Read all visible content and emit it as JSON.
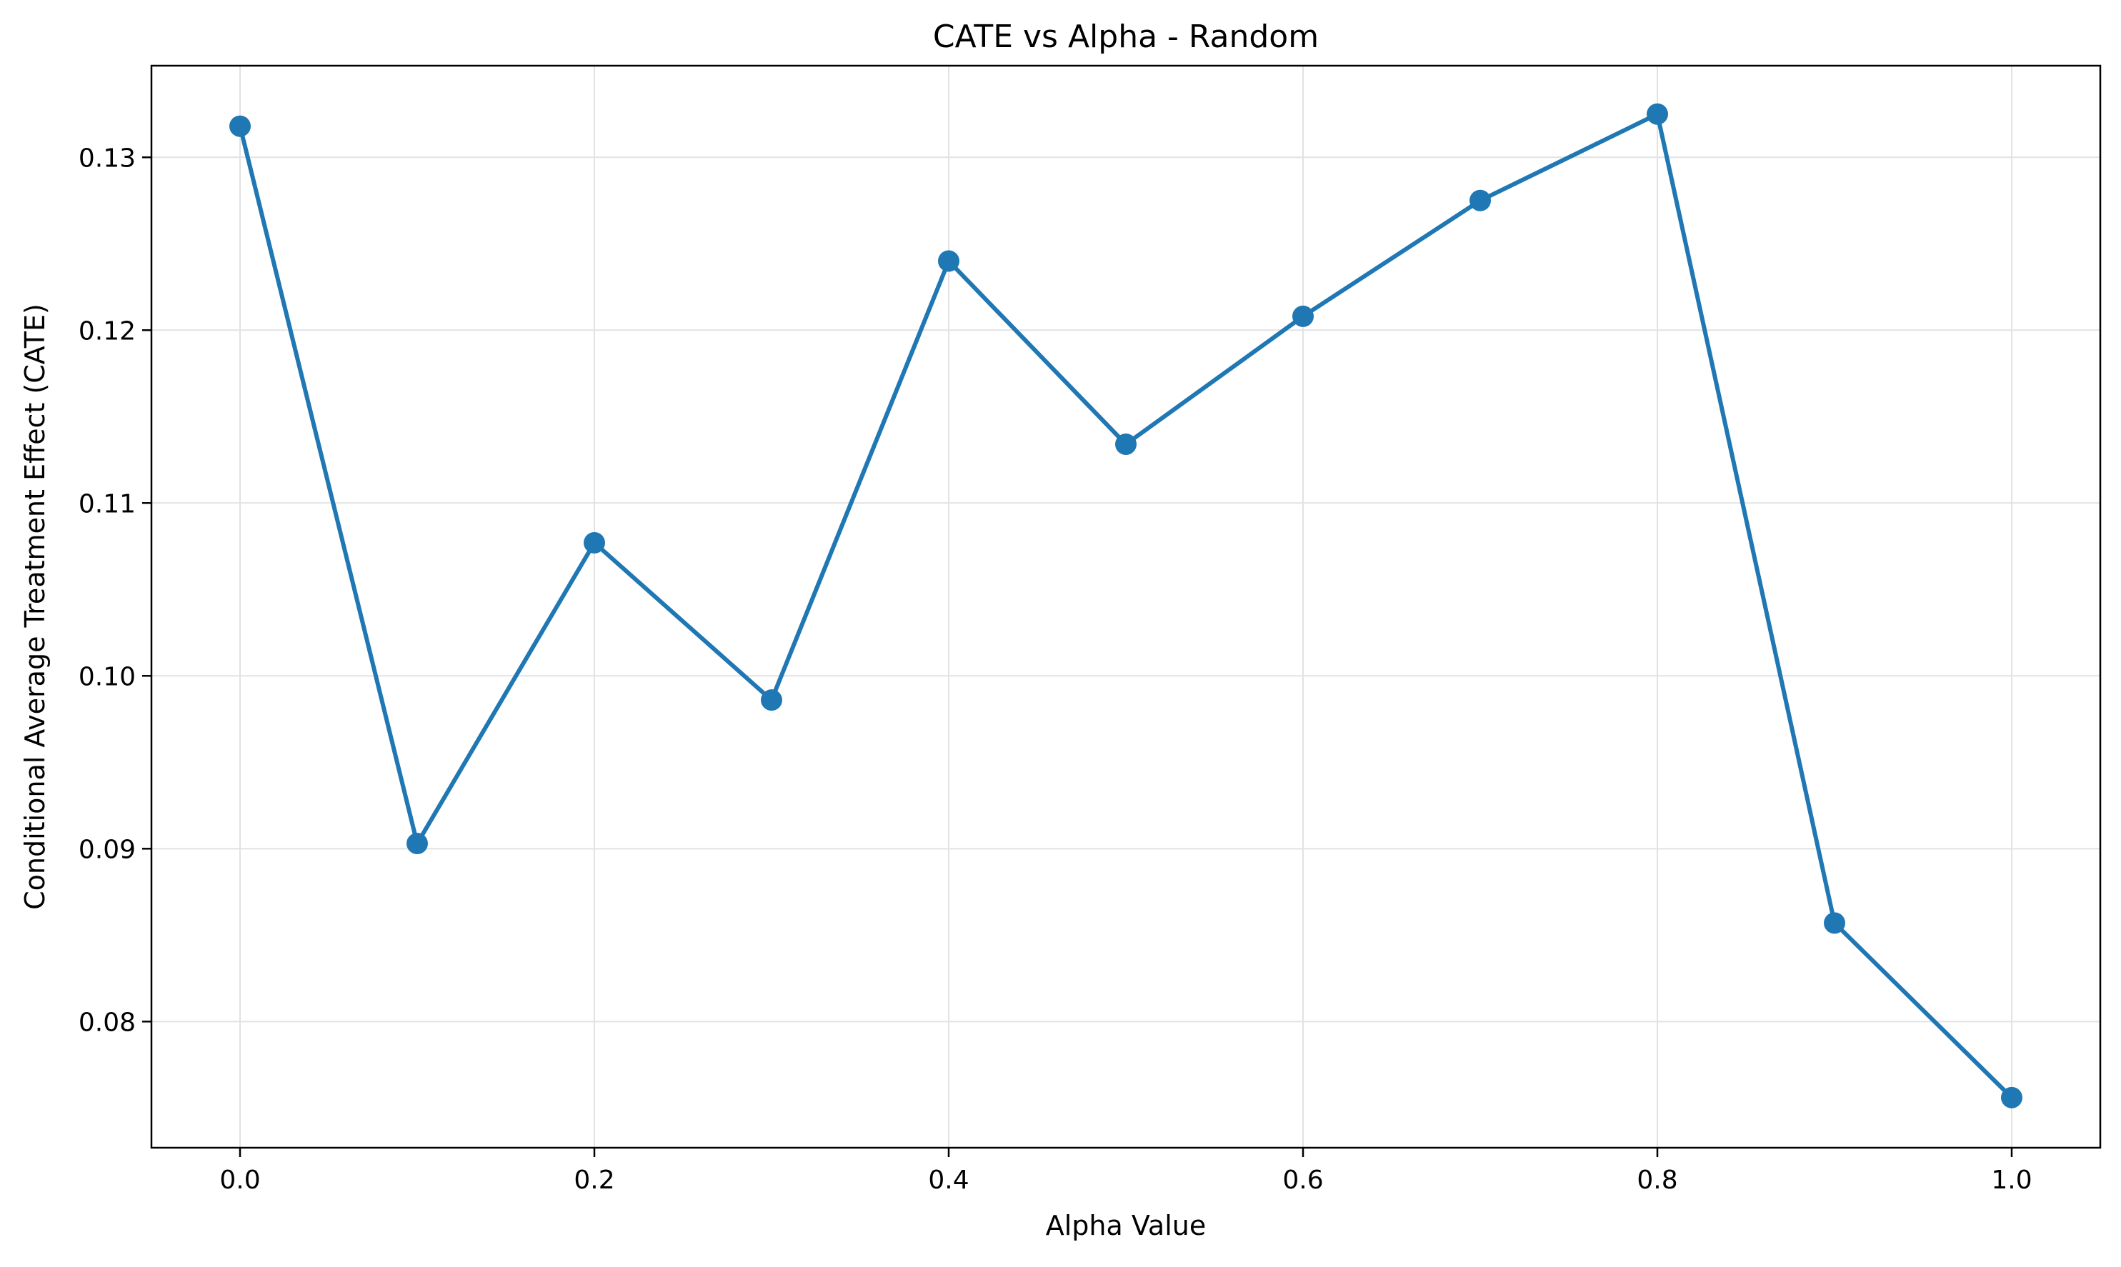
{
  "colors": {
    "series": "#1f77b4",
    "grid": "#e2e2e2",
    "axes": "#000000",
    "background": "#ffffff"
  },
  "chart_data": {
    "type": "line",
    "title": "CATE vs Alpha - Random",
    "xlabel": "Alpha Value",
    "ylabel": "Conditional Average Treatment Effect (CATE)",
    "xlim": [
      -0.05,
      1.05
    ],
    "ylim": [
      0.0727,
      0.1353
    ],
    "xticks": [
      0.0,
      0.2,
      0.4,
      0.6,
      0.8,
      1.0
    ],
    "xtick_labels": [
      "0.0",
      "0.2",
      "0.4",
      "0.6",
      "0.8",
      "1.0"
    ],
    "yticks": [
      0.08,
      0.09,
      0.1,
      0.11,
      0.12,
      0.13
    ],
    "ytick_labels": [
      "0.08",
      "0.09",
      "0.10",
      "0.11",
      "0.12",
      "0.13"
    ],
    "grid": true,
    "legend": "none",
    "marker": "circle",
    "series": [
      {
        "x": [
          0.0,
          0.1,
          0.2,
          0.3,
          0.4,
          0.5,
          0.6,
          0.7,
          0.8,
          0.9,
          1.0
        ],
        "values": [
          0.1318,
          0.0903,
          0.1077,
          0.0986,
          0.124,
          0.1134,
          0.1208,
          0.1275,
          0.1325,
          0.0857,
          0.0756
        ]
      }
    ]
  }
}
